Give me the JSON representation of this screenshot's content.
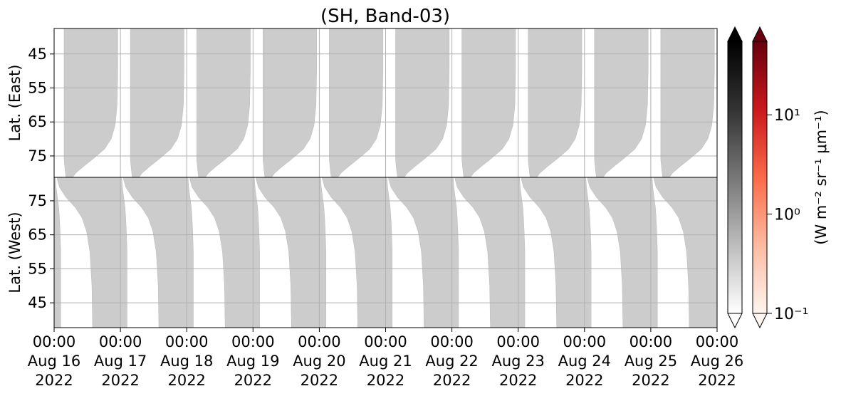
{
  "chart_data": {
    "type": "heatmap",
    "title": "(SH, Band-03)",
    "xlim": [
      "2022-08-16T00:00",
      "2022-08-26T00:00"
    ],
    "xticks": [
      {
        "value": "2022-08-16T00:00",
        "label": "00:00\nAug 16\n2022"
      },
      {
        "value": "2022-08-17T00:00",
        "label": "00:00\nAug 17\n2022"
      },
      {
        "value": "2022-08-18T00:00",
        "label": "00:00\nAug 18\n2022"
      },
      {
        "value": "2022-08-19T00:00",
        "label": "00:00\nAug 19\n2022"
      },
      {
        "value": "2022-08-20T00:00",
        "label": "00:00\nAug 20\n2022"
      },
      {
        "value": "2022-08-21T00:00",
        "label": "00:00\nAug 21\n2022"
      },
      {
        "value": "2022-08-22T00:00",
        "label": "00:00\nAug 22\n2022"
      },
      {
        "value": "2022-08-23T00:00",
        "label": "00:00\nAug 23\n2022"
      },
      {
        "value": "2022-08-24T00:00",
        "label": "00:00\nAug 24\n2022"
      },
      {
        "value": "2022-08-25T00:00",
        "label": "00:00\nAug 25\n2022"
      },
      {
        "value": "2022-08-26T00:00",
        "label": "00:00\nAug 26\n2022"
      }
    ],
    "grid": true,
    "panels": [
      {
        "ylabel": "Lat. (East)",
        "ylim": [
          37.5,
          81.3
        ],
        "y_inverted": true,
        "yticks": [
          45,
          55,
          65,
          75
        ],
        "color": "#cccccc",
        "swath": {
          "lat": [
            37.5,
            50,
            60,
            66,
            70,
            73,
            76,
            78,
            80,
            81.3
          ],
          "start": [
            0.15,
            0.15,
            0.15,
            0.15,
            0.15,
            0.15,
            0.15,
            0.16,
            0.17,
            0.18
          ],
          "end": [
            0.96,
            0.96,
            0.95,
            0.92,
            0.86,
            0.76,
            0.58,
            0.45,
            0.33,
            0.28
          ]
        }
      },
      {
        "ylabel": "Lat. (West)",
        "ylim": [
          37.7,
          81.9
        ],
        "y_inverted": false,
        "yticks": [
          45,
          55,
          65,
          75
        ],
        "color": "#cccccc",
        "swath": {
          "lat": [
            37.7,
            50,
            60,
            66,
            70,
            73,
            76,
            79,
            81.9
          ],
          "start": [
            0.58,
            0.57,
            0.54,
            0.49,
            0.42,
            0.32,
            0.18,
            0.08,
            0.04
          ],
          "end": [
            1.1,
            1.1,
            1.1,
            1.09,
            1.08,
            1.07,
            1.05,
            1.03,
            1.02
          ]
        }
      }
    ],
    "colorbars": [
      {
        "colors": [
          "#ffffff",
          "#bdbdbd",
          "#777777",
          "#333333",
          "#000000"
        ]
      },
      {
        "colors": [
          "#fff5f0",
          "#fcbba1",
          "#fb6a4a",
          "#cb181d",
          "#67000d"
        ]
      }
    ],
    "clim": [
      0.1,
      55
    ],
    "clog": true,
    "cticks": [
      {
        "value": 0.1,
        "label": "10⁻¹"
      },
      {
        "value": 1,
        "label": "10⁰"
      },
      {
        "value": 10,
        "label": "10¹"
      }
    ],
    "clabel": "(W m⁻² sr⁻¹ μm⁻¹)"
  }
}
